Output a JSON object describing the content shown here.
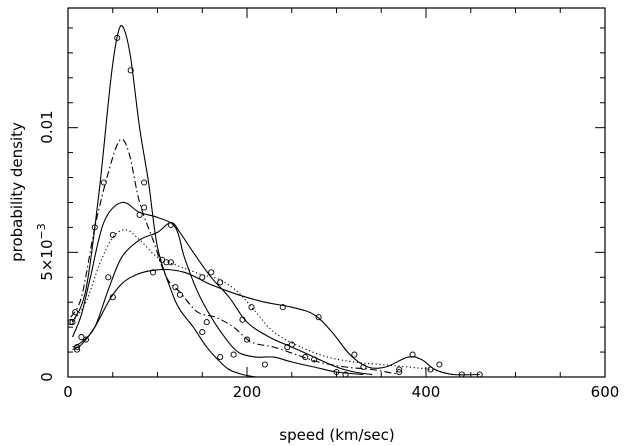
{
  "chart_data": {
    "type": "line",
    "title": "",
    "xlabel": "speed  (km/sec)",
    "ylabel": "probability  density",
    "xlim": [
      0,
      600
    ],
    "ylim": [
      0,
      0.0148
    ],
    "x_ticks": [
      0,
      200,
      400,
      600
    ],
    "x_tick_labels": [
      "0",
      "200",
      "400",
      "600"
    ],
    "y_ticks": [
      0,
      0.005,
      0.01
    ],
    "y_tick_labels": [
      "0",
      "5×10",
      "0.01"
    ],
    "y_tick_exponent": "−3",
    "grid": false,
    "legend": "none",
    "series": [
      {
        "line": "solid",
        "points": [
          [
            5,
            0.0022
          ],
          [
            20,
            0.0035
          ],
          [
            35,
            0.0075
          ],
          [
            48,
            0.012
          ],
          [
            56,
            0.0138
          ],
          [
            62,
            0.014
          ],
          [
            70,
            0.0128
          ],
          [
            80,
            0.01
          ],
          [
            90,
            0.0078
          ],
          [
            100,
            0.0052
          ],
          [
            115,
            0.0035
          ],
          [
            125,
            0.0027
          ],
          [
            140,
            0.002
          ],
          [
            155,
            0.0012
          ],
          [
            170,
            0.0006
          ],
          [
            180,
            0.0003
          ],
          [
            195,
            0.0001
          ],
          [
            210,
            0.0
          ]
        ],
        "markers": [
          [
            55,
            0.0136
          ],
          [
            70,
            0.0123
          ],
          [
            85,
            0.0078
          ],
          [
            105,
            0.0047
          ],
          [
            120,
            0.0036
          ],
          [
            150,
            0.0018
          ],
          [
            170,
            0.0008
          ]
        ]
      },
      {
        "line": "solid",
        "points": [
          [
            5,
            0.0016
          ],
          [
            15,
            0.0025
          ],
          [
            25,
            0.004
          ],
          [
            40,
            0.0062
          ],
          [
            60,
            0.007
          ],
          [
            80,
            0.0066
          ],
          [
            100,
            0.0064
          ],
          [
            120,
            0.006
          ],
          [
            130,
            0.0048
          ],
          [
            145,
            0.0034
          ],
          [
            160,
            0.0024
          ],
          [
            175,
            0.0016
          ],
          [
            190,
            0.001
          ],
          [
            210,
            0.0008
          ],
          [
            230,
            0.0008
          ],
          [
            250,
            0.0006
          ],
          [
            275,
            0.0004
          ],
          [
            300,
            0.0002
          ],
          [
            330,
            0.0001
          ]
        ],
        "markers": [
          [
            15,
            0.0016
          ],
          [
            30,
            0.006
          ],
          [
            80,
            0.0065
          ],
          [
            115,
            0.0046
          ],
          [
            155,
            0.0022
          ],
          [
            185,
            0.0009
          ],
          [
            220,
            0.0005
          ],
          [
            275,
            0.0007
          ],
          [
            310,
            0.0001
          ]
        ]
      },
      {
        "line": "solid",
        "points": [
          [
            5,
            0.0012
          ],
          [
            15,
            0.0014
          ],
          [
            30,
            0.002
          ],
          [
            45,
            0.0035
          ],
          [
            60,
            0.0048
          ],
          [
            80,
            0.0055
          ],
          [
            100,
            0.0058
          ],
          [
            115,
            0.0062
          ],
          [
            125,
            0.0058
          ],
          [
            140,
            0.005
          ],
          [
            160,
            0.004
          ],
          [
            180,
            0.0032
          ],
          [
            200,
            0.0022
          ],
          [
            225,
            0.0016
          ],
          [
            250,
            0.0012
          ],
          [
            275,
            0.0008
          ],
          [
            300,
            0.0004
          ],
          [
            320,
            0.0002
          ],
          [
            340,
            0.0001
          ]
        ],
        "markers": [
          [
            10,
            0.0012
          ],
          [
            20,
            0.0015
          ],
          [
            45,
            0.004
          ],
          [
            115,
            0.0061
          ],
          [
            160,
            0.0042
          ],
          [
            195,
            0.0023
          ],
          [
            245,
            0.0012
          ],
          [
            300,
            0.0002
          ]
        ]
      },
      {
        "line": "solid",
        "points": [
          [
            5,
            0.0011
          ],
          [
            15,
            0.0013
          ],
          [
            30,
            0.002
          ],
          [
            50,
            0.0033
          ],
          [
            70,
            0.004
          ],
          [
            100,
            0.0043
          ],
          [
            130,
            0.0042
          ],
          [
            160,
            0.0037
          ],
          [
            190,
            0.0033
          ],
          [
            220,
            0.003
          ],
          [
            250,
            0.0028
          ],
          [
            275,
            0.0025
          ],
          [
            295,
            0.0018
          ],
          [
            315,
            0.0009
          ],
          [
            335,
            0.0004
          ],
          [
            355,
            0.0004
          ],
          [
            380,
            0.0008
          ],
          [
            395,
            0.0007
          ],
          [
            410,
            0.0003
          ],
          [
            430,
            0.0001
          ],
          [
            460,
            0.0001
          ]
        ],
        "markers": [
          [
            10,
            0.0011
          ],
          [
            50,
            0.0032
          ],
          [
            95,
            0.0042
          ],
          [
            150,
            0.004
          ],
          [
            240,
            0.0028
          ],
          [
            280,
            0.0024
          ],
          [
            320,
            0.0009
          ],
          [
            385,
            0.0009
          ],
          [
            405,
            0.0003
          ],
          [
            440,
            0.0001
          ],
          [
            460,
            0.0001
          ]
        ]
      },
      {
        "line": "dashdot",
        "points": [
          [
            3,
            0.0024
          ],
          [
            15,
            0.0032
          ],
          [
            30,
            0.006
          ],
          [
            45,
            0.0082
          ],
          [
            58,
            0.0095
          ],
          [
            68,
            0.009
          ],
          [
            80,
            0.007
          ],
          [
            95,
            0.0055
          ],
          [
            110,
            0.004
          ],
          [
            125,
            0.0034
          ],
          [
            145,
            0.0026
          ],
          [
            165,
            0.0024
          ],
          [
            185,
            0.002
          ],
          [
            205,
            0.0014
          ],
          [
            230,
            0.0012
          ],
          [
            255,
            0.0009
          ],
          [
            280,
            0.0006
          ],
          [
            310,
            0.0004
          ],
          [
            340,
            0.0003
          ],
          [
            370,
            0.0001
          ]
        ],
        "markers": [
          [
            3,
            0.0022
          ],
          [
            8,
            0.0026
          ],
          [
            40,
            0.0078
          ],
          [
            85,
            0.0068
          ],
          [
            125,
            0.0033
          ],
          [
            200,
            0.0015
          ],
          [
            265,
            0.0008
          ],
          [
            370,
            0.0002
          ]
        ]
      },
      {
        "line": "dotted",
        "points": [
          [
            5,
            0.0022
          ],
          [
            20,
            0.003
          ],
          [
            35,
            0.0045
          ],
          [
            50,
            0.0056
          ],
          [
            65,
            0.0059
          ],
          [
            80,
            0.0055
          ],
          [
            100,
            0.0048
          ],
          [
            120,
            0.0045
          ],
          [
            135,
            0.0043
          ],
          [
            150,
            0.0041
          ],
          [
            170,
            0.0039
          ],
          [
            190,
            0.0034
          ],
          [
            210,
            0.0026
          ],
          [
            230,
            0.0018
          ],
          [
            260,
            0.0012
          ],
          [
            290,
            0.0008
          ],
          [
            320,
            0.0006
          ],
          [
            350,
            0.0005
          ],
          [
            380,
            0.0004
          ],
          [
            405,
            0.0003
          ],
          [
            430,
            0.0001
          ]
        ],
        "markers": [
          [
            5,
            0.0022
          ],
          [
            50,
            0.0057
          ],
          [
            110,
            0.0046
          ],
          [
            170,
            0.0038
          ],
          [
            205,
            0.0028
          ],
          [
            250,
            0.0013
          ],
          [
            330,
            0.0004
          ],
          [
            370,
            0.0003
          ],
          [
            415,
            0.0005
          ]
        ]
      }
    ]
  }
}
